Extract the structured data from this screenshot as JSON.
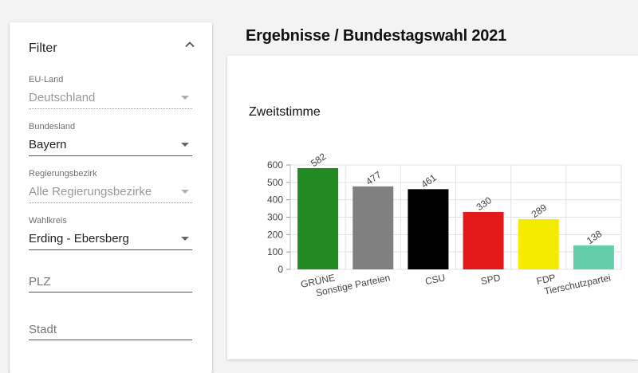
{
  "filter": {
    "title": "Filter",
    "fields": [
      {
        "label": "EU-Land",
        "value": "Deutschland",
        "disabled": true
      },
      {
        "label": "Bundesland",
        "value": "Bayern",
        "disabled": false
      },
      {
        "label": "Regierungsbezirk",
        "value": "Alle Regierungsbezirke",
        "disabled": true
      },
      {
        "label": "Wahlkreis",
        "value": "Erding - Ebersberg",
        "disabled": false
      }
    ],
    "plz_placeholder": "PLZ",
    "stadt_placeholder": "Stadt"
  },
  "main": {
    "title": "Ergebnisse / Bundestagswahl 2021",
    "chart_heading": "Zweitstimme"
  },
  "chart_data": {
    "type": "bar",
    "title": "Zweitstimme",
    "xlabel": "",
    "ylabel": "",
    "categories": [
      "GRÜNE",
      "Sonstige Parteien",
      "CSU",
      "SPD",
      "FDP",
      "Tierschutzpartei"
    ],
    "values": [
      582,
      477,
      461,
      330,
      289,
      138
    ],
    "colors": [
      "#238a23",
      "#808080",
      "#000000",
      "#e21a1a",
      "#f5eb00",
      "#66cdaa"
    ],
    "ylim": [
      0,
      600
    ],
    "yticks": [
      0,
      100,
      200,
      300,
      400,
      500,
      600
    ],
    "grid": true
  }
}
